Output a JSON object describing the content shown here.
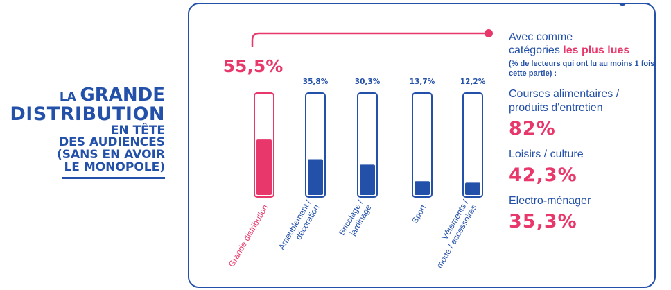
{
  "headline": {
    "line1_small": "LA",
    "line1_big": "GRANDE",
    "line2": "DISTRIBUTION",
    "line3": "EN TÊTE",
    "line4": "DES AUDIENCES",
    "line5": "(SANS EN AVOIR",
    "line6": "LE MONOPOLE)"
  },
  "colors": {
    "blue": "#2350a8",
    "pink": "#e8386b",
    "white": "#ffffff"
  },
  "chart_data": {
    "type": "bar",
    "categories": [
      "Grande distribution",
      "Ameublement / décoration",
      "Bricolage / jardinage",
      "Sport",
      "Vêtements / mode / accessoires"
    ],
    "category_lines": [
      [
        "Grande distribution"
      ],
      [
        "Ameublement /",
        "décoration"
      ],
      [
        "Bricolage /",
        "jardinage"
      ],
      [
        "Sport"
      ],
      [
        "Vêtements /",
        "mode / accessoires"
      ]
    ],
    "values": [
      55.5,
      35.8,
      30.3,
      13.7,
      12.2
    ],
    "value_labels": [
      "55,5%",
      "35,8%",
      "30,3%",
      "13,7%",
      "12,2%"
    ],
    "highlight_index": 0,
    "ylim": [
      0,
      100
    ],
    "unit": "%"
  },
  "legend": {
    "intro_line1": "Avec comme",
    "intro_line2_plain": "catégories ",
    "intro_line2_emph": "les plus lues",
    "note": "(% de lecteurs qui ont lu au moins 1 fois cette partie) :",
    "items": [
      {
        "label_line1": "Courses alimentaires /",
        "label_line2": "produits d'entretien",
        "value": "82%"
      },
      {
        "label_line1": "Loisirs / culture",
        "label_line2": "",
        "value": "42,3%"
      },
      {
        "label_line1": "Electro-ménager",
        "label_line2": "",
        "value": "35,3%"
      }
    ]
  }
}
